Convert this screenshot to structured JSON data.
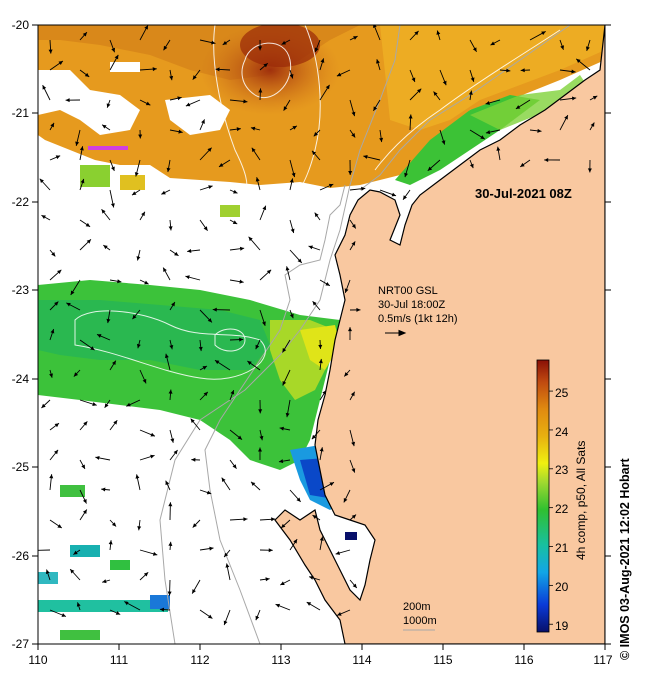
{
  "map": {
    "lon_ticks": [
      "110",
      "111",
      "112",
      "113",
      "114",
      "115",
      "116",
      "117"
    ],
    "lat_ticks": [
      "-20",
      "-21",
      "-22",
      "-23",
      "-24",
      "-25",
      "-26",
      "-27"
    ],
    "datetime": "30-Jul-2021 08Z",
    "current_info": {
      "line1": "NRT00 GSL",
      "line2": "30-Jul 18:00Z",
      "line3": "0.5m/s (1kt 12h)"
    },
    "contours": {
      "line1": "200m",
      "line2": "1000m"
    },
    "colorbar": {
      "label": "4h comp, p50, All Sats",
      "ticks": [
        "25",
        "24",
        "23",
        "22",
        "21",
        "20",
        "19"
      ],
      "min": 18.8,
      "max": 25.8
    },
    "credit": "© IMOS 03-Aug-2021 12:02 Hobart",
    "colors": {
      "land": "#f9c8a0",
      "coastline": "#000000",
      "bathymetry": "#a8a8a8"
    }
  }
}
